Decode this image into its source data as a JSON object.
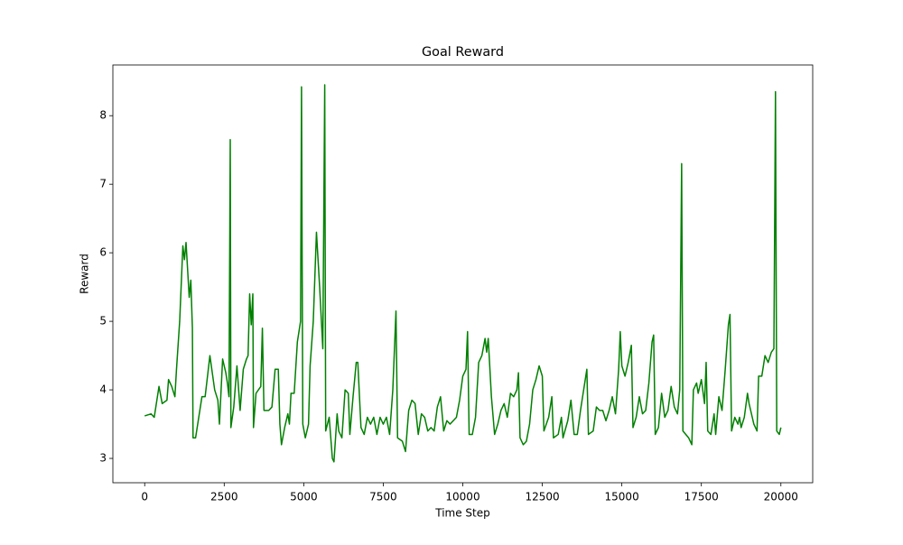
{
  "chart_data": {
    "type": "line",
    "title": "Goal Reward",
    "xlabel": "Time Step",
    "ylabel": "Reward",
    "color": "green",
    "xlim": [
      -1000,
      21000
    ],
    "ylim": [
      2.645,
      8.74
    ],
    "xticks": [
      0,
      2500,
      5000,
      7500,
      10000,
      12500,
      15000,
      17500,
      20000
    ],
    "yticks": [
      3,
      4,
      5,
      6,
      7,
      8
    ],
    "x": [
      0,
      200,
      300,
      450,
      550,
      700,
      750,
      850,
      950,
      1000,
      1100,
      1200,
      1250,
      1300,
      1400,
      1450,
      1500,
      1520,
      1600,
      1700,
      1800,
      1900,
      2000,
      2050,
      2200,
      2300,
      2350,
      2450,
      2550,
      2600,
      2650,
      2690,
      2710,
      2800,
      2900,
      3000,
      3100,
      3200,
      3250,
      3300,
      3350,
      3400,
      3420,
      3500,
      3650,
      3700,
      3750,
      3900,
      4000,
      4100,
      4200,
      4250,
      4300,
      4400,
      4500,
      4550,
      4600,
      4700,
      4800,
      4900,
      4930,
      4970,
      5050,
      5150,
      5200,
      5300,
      5400,
      5500,
      5600,
      5660,
      5690,
      5800,
      5900,
      5950,
      6050,
      6100,
      6200,
      6300,
      6400,
      6450,
      6550,
      6650,
      6700,
      6800,
      6900,
      7000,
      7100,
      7200,
      7300,
      7400,
      7500,
      7600,
      7700,
      7800,
      7900,
      7950,
      8100,
      8200,
      8300,
      8400,
      8500,
      8600,
      8700,
      8800,
      8900,
      9000,
      9100,
      9200,
      9300,
      9400,
      9500,
      9600,
      9700,
      9800,
      9900,
      10000,
      10100,
      10150,
      10200,
      10300,
      10400,
      10500,
      10600,
      10700,
      10750,
      10800,
      10900,
      11000,
      11100,
      11200,
      11300,
      11400,
      11500,
      11600,
      11700,
      11750,
      11800,
      11900,
      12000,
      12100,
      12200,
      12300,
      12400,
      12500,
      12550,
      12700,
      12800,
      12850,
      13000,
      13100,
      13150,
      13300,
      13400,
      13500,
      13600,
      13700,
      13800,
      13900,
      13950,
      14100,
      14200,
      14300,
      14400,
      14500,
      14600,
      14700,
      14800,
      14900,
      14950,
      15000,
      15100,
      15200,
      15300,
      15350,
      15450,
      15550,
      15650,
      15750,
      15850,
      15950,
      16000,
      16050,
      16150,
      16250,
      16350,
      16450,
      16550,
      16650,
      16750,
      16820,
      16880,
      16920,
      17100,
      17200,
      17250,
      17350,
      17400,
      17500,
      17600,
      17650,
      17700,
      17800,
      17900,
      17950,
      18050,
      18150,
      18250,
      18350,
      18400,
      18450,
      18550,
      18650,
      18700,
      18750,
      18850,
      18950,
      19000,
      19050,
      19150,
      19200,
      19250,
      19300,
      19400,
      19500,
      19600,
      19700,
      19780,
      19830,
      19870,
      19950,
      20000
    ],
    "values": [
      3.62,
      3.65,
      3.6,
      4.05,
      3.8,
      3.85,
      4.15,
      4.05,
      3.9,
      4.3,
      5.0,
      6.1,
      5.9,
      6.15,
      5.35,
      5.6,
      4.9,
      3.3,
      3.3,
      3.6,
      3.9,
      3.9,
      4.3,
      4.5,
      4.0,
      3.85,
      3.5,
      4.45,
      4.25,
      4.1,
      3.9,
      7.65,
      3.45,
      3.75,
      4.35,
      3.7,
      4.3,
      4.45,
      4.5,
      5.4,
      4.95,
      5.4,
      3.45,
      3.95,
      4.05,
      4.9,
      3.7,
      3.7,
      3.75,
      4.3,
      4.3,
      3.5,
      3.2,
      3.45,
      3.65,
      3.5,
      3.95,
      3.95,
      4.7,
      5.0,
      8.42,
      3.5,
      3.3,
      3.5,
      4.35,
      5.0,
      6.3,
      5.5,
      4.6,
      8.45,
      3.4,
      3.6,
      3.0,
      2.95,
      3.65,
      3.4,
      3.3,
      4.0,
      3.95,
      3.35,
      3.9,
      4.4,
      4.4,
      3.45,
      3.35,
      3.6,
      3.5,
      3.6,
      3.35,
      3.6,
      3.5,
      3.6,
      3.35,
      4.0,
      5.15,
      3.3,
      3.25,
      3.1,
      3.7,
      3.85,
      3.8,
      3.35,
      3.65,
      3.6,
      3.4,
      3.45,
      3.4,
      3.75,
      3.9,
      3.4,
      3.55,
      3.5,
      3.55,
      3.6,
      3.85,
      4.2,
      4.3,
      4.85,
      3.35,
      3.35,
      3.6,
      4.4,
      4.5,
      4.75,
      4.55,
      4.75,
      3.9,
      3.35,
      3.5,
      3.7,
      3.8,
      3.6,
      3.95,
      3.9,
      4.0,
      4.25,
      3.3,
      3.2,
      3.25,
      3.5,
      4.0,
      4.15,
      4.35,
      4.2,
      3.4,
      3.6,
      3.9,
      3.3,
      3.35,
      3.6,
      3.3,
      3.55,
      3.85,
      3.35,
      3.35,
      3.7,
      4.0,
      4.3,
      3.35,
      3.4,
      3.75,
      3.7,
      3.7,
      3.55,
      3.7,
      3.9,
      3.65,
      4.3,
      4.85,
      4.35,
      4.2,
      4.4,
      4.65,
      3.45,
      3.6,
      3.9,
      3.65,
      3.7,
      4.1,
      4.7,
      4.8,
      3.35,
      3.45,
      3.95,
      3.6,
      3.7,
      4.05,
      3.75,
      3.65,
      4.0,
      7.3,
      3.4,
      3.3,
      3.2,
      4.0,
      4.1,
      3.95,
      4.15,
      3.8,
      4.4,
      3.4,
      3.35,
      3.65,
      3.35,
      3.9,
      3.7,
      4.3,
      4.95,
      5.1,
      3.4,
      3.6,
      3.5,
      3.6,
      3.45,
      3.6,
      3.95,
      3.8,
      3.7,
      3.5,
      3.45,
      3.4,
      4.2,
      4.2,
      4.5,
      4.4,
      4.55,
      4.6,
      8.35,
      3.4,
      3.35,
      3.45
    ]
  }
}
